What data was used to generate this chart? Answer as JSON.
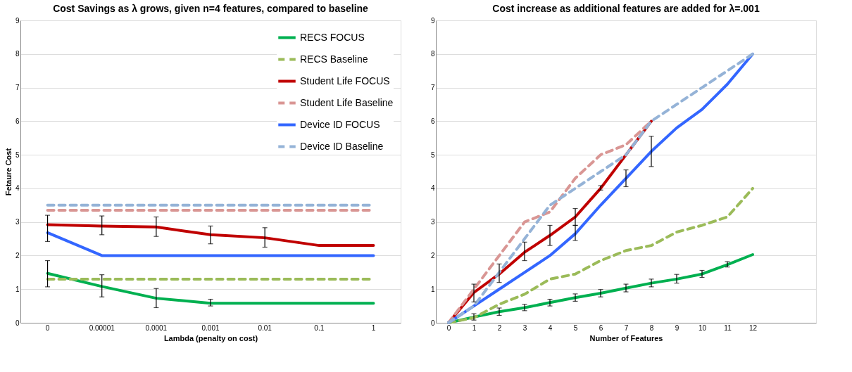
{
  "chart_data": [
    {
      "type": "line",
      "title": "Cost Savings as λ grows, given n=4 features, compared to baseline",
      "xlabel": "Lambda (penalty on cost)",
      "ylabel": "Fetaure Cost",
      "categories": [
        "0",
        "0.00001",
        "0.0001",
        "0.001",
        "0.01",
        "0.1",
        "1"
      ],
      "ylim": [
        0,
        9
      ],
      "yticks": [
        0,
        1,
        2,
        3,
        4,
        5,
        6,
        7,
        8,
        9
      ],
      "grid": "y",
      "legend": "top right",
      "marker": "none",
      "series": [
        {
          "name": "RECS FOCUS",
          "color": "#00b050",
          "line_style": "solid",
          "values": [
            1.47,
            1.08,
            0.73,
            0.58,
            0.58,
            0.58,
            0.58
          ],
          "errors": [
            [
              1.07,
              1.85
            ],
            [
              0.77,
              1.43
            ],
            [
              0.45,
              1.02
            ],
            [
              0.5,
              0.7
            ],
            null,
            null,
            null
          ]
        },
        {
          "name": "RECS Baseline",
          "color": "#9bbb59",
          "line_style": "dashed",
          "values": [
            1.3,
            1.3,
            1.3,
            1.3,
            1.3,
            1.3,
            1.3
          ]
        },
        {
          "name": "Student Life FOCUS",
          "color": "#c00000",
          "line_style": "solid",
          "values": [
            2.92,
            2.88,
            2.85,
            2.62,
            2.53,
            2.3,
            2.3
          ],
          "errors": [
            [
              2.42,
              3.2
            ],
            [
              2.62,
              3.18
            ],
            [
              2.57,
              3.15
            ],
            [
              2.35,
              2.88
            ],
            [
              2.25,
              2.83
            ],
            null,
            null
          ]
        },
        {
          "name": "Student Life Baseline",
          "color": "#d99694",
          "line_style": "dashed",
          "values": [
            3.35,
            3.35,
            3.35,
            3.35,
            3.35,
            3.35,
            3.35
          ]
        },
        {
          "name": "Device ID FOCUS",
          "color": "#3366ff",
          "line_style": "solid",
          "values": [
            2.68,
            2.0,
            2.0,
            2.0,
            2.0,
            2.0,
            2.0
          ]
        },
        {
          "name": "Device ID Baseline",
          "color": "#95b3d7",
          "line_style": "dashed",
          "values": [
            3.5,
            3.5,
            3.5,
            3.5,
            3.5,
            3.5,
            3.5
          ]
        }
      ]
    },
    {
      "type": "line",
      "title": "Cost increase as additional features are added for λ=.001",
      "xlabel": "Number of Features",
      "x": [
        0,
        1,
        2,
        3,
        4,
        5,
        6,
        7,
        8,
        9,
        10,
        11,
        12
      ],
      "xlim": [
        -0.5,
        14.5
      ],
      "xticks": [
        0,
        1,
        2,
        3,
        4,
        5,
        6,
        7,
        8,
        9,
        10,
        11,
        12
      ],
      "ylim": [
        0,
        9
      ],
      "yticks": [
        0,
        1,
        2,
        3,
        4,
        5,
        6,
        7,
        8,
        9
      ],
      "grid": "y",
      "legend": false,
      "marker": "none",
      "series": [
        {
          "color": "#00b050",
          "line_style": "solid",
          "values": [
            0,
            0.17,
            0.33,
            0.45,
            0.6,
            0.75,
            0.88,
            1.03,
            1.18,
            1.3,
            1.45,
            1.73,
            2.03
          ],
          "errors": [
            null,
            [
              0.08,
              0.27
            ],
            [
              0.22,
              0.44
            ],
            [
              0.36,
              0.55
            ],
            [
              0.5,
              0.7
            ],
            [
              0.64,
              0.86
            ],
            [
              0.77,
              0.99
            ],
            [
              0.92,
              1.15
            ],
            [
              1.07,
              1.3
            ],
            [
              1.18,
              1.44
            ],
            [
              1.35,
              1.56
            ],
            [
              1.66,
              1.82
            ],
            null
          ]
        },
        {
          "color": "#9bbb59",
          "line_style": "dashed",
          "values": [
            0,
            0.15,
            0.55,
            0.85,
            1.3,
            1.45,
            1.85,
            2.15,
            2.3,
            2.7,
            2.9,
            3.15,
            4.0
          ]
        },
        {
          "color": "#c00000",
          "line_style": "solid",
          "values": [
            0,
            0.9,
            1.45,
            2.1,
            2.6,
            3.15,
            4.0,
            5.0,
            6.0,
            null,
            null,
            null,
            null
          ],
          "errors": [
            null,
            [
              0.62,
              1.15
            ],
            [
              1.2,
              1.75
            ],
            [
              1.85,
              2.4
            ],
            [
              2.3,
              2.9
            ],
            [
              2.9,
              3.4
            ],
            [
              3.95,
              4.08
            ],
            null,
            null,
            null,
            null,
            null,
            null
          ]
        },
        {
          "color": "#d99694",
          "line_style": "dashed",
          "values": [
            0,
            1.0,
            2.0,
            3.0,
            3.3,
            4.3,
            5.0,
            5.3,
            6.0,
            null,
            null,
            null,
            null
          ]
        },
        {
          "color": "#3366ff",
          "line_style": "solid",
          "values": [
            0,
            0.5,
            1.0,
            1.5,
            2.0,
            2.65,
            3.5,
            4.3,
            5.1,
            5.8,
            6.35,
            7.1,
            8.0
          ],
          "errors": [
            null,
            null,
            null,
            null,
            null,
            [
              2.45,
              2.9
            ],
            null,
            [
              4.05,
              4.55
            ],
            [
              4.65,
              5.55
            ],
            null,
            null,
            null,
            null
          ]
        },
        {
          "color": "#95b3d7",
          "line_style": "dashed",
          "values": [
            0,
            0.5,
            1.5,
            2.5,
            3.5,
            4.0,
            4.5,
            5.0,
            6.0,
            6.5,
            7.0,
            7.5,
            8.0
          ]
        }
      ]
    }
  ]
}
